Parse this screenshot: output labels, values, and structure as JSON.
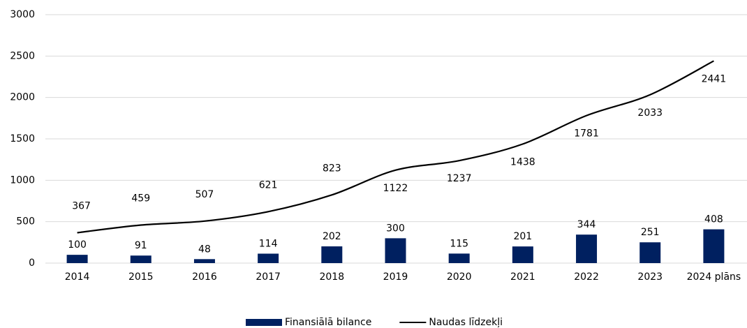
{
  "chart_data": {
    "type": "combo",
    "categories": [
      "2014",
      "2015",
      "2016",
      "2017",
      "2018",
      "2019",
      "2020",
      "2021",
      "2022",
      "2023",
      "2024 plāns"
    ],
    "series": [
      {
        "name": "Finansiālā bilance",
        "type": "bar",
        "color": "#002060",
        "values": [
          100,
          91,
          48,
          114,
          202,
          300,
          115,
          201,
          344,
          251,
          408
        ]
      },
      {
        "name": "Naudas līdzekļi",
        "type": "line",
        "color": "#000000",
        "values": [
          367,
          459,
          507,
          621,
          823,
          1122,
          1237,
          1438,
          1781,
          2033,
          2441
        ]
      }
    ],
    "ylim": [
      0,
      3000
    ],
    "yticks": [
      0,
      500,
      1000,
      1500,
      2000,
      2500,
      3000
    ],
    "grid": true,
    "legend": "bottom"
  }
}
